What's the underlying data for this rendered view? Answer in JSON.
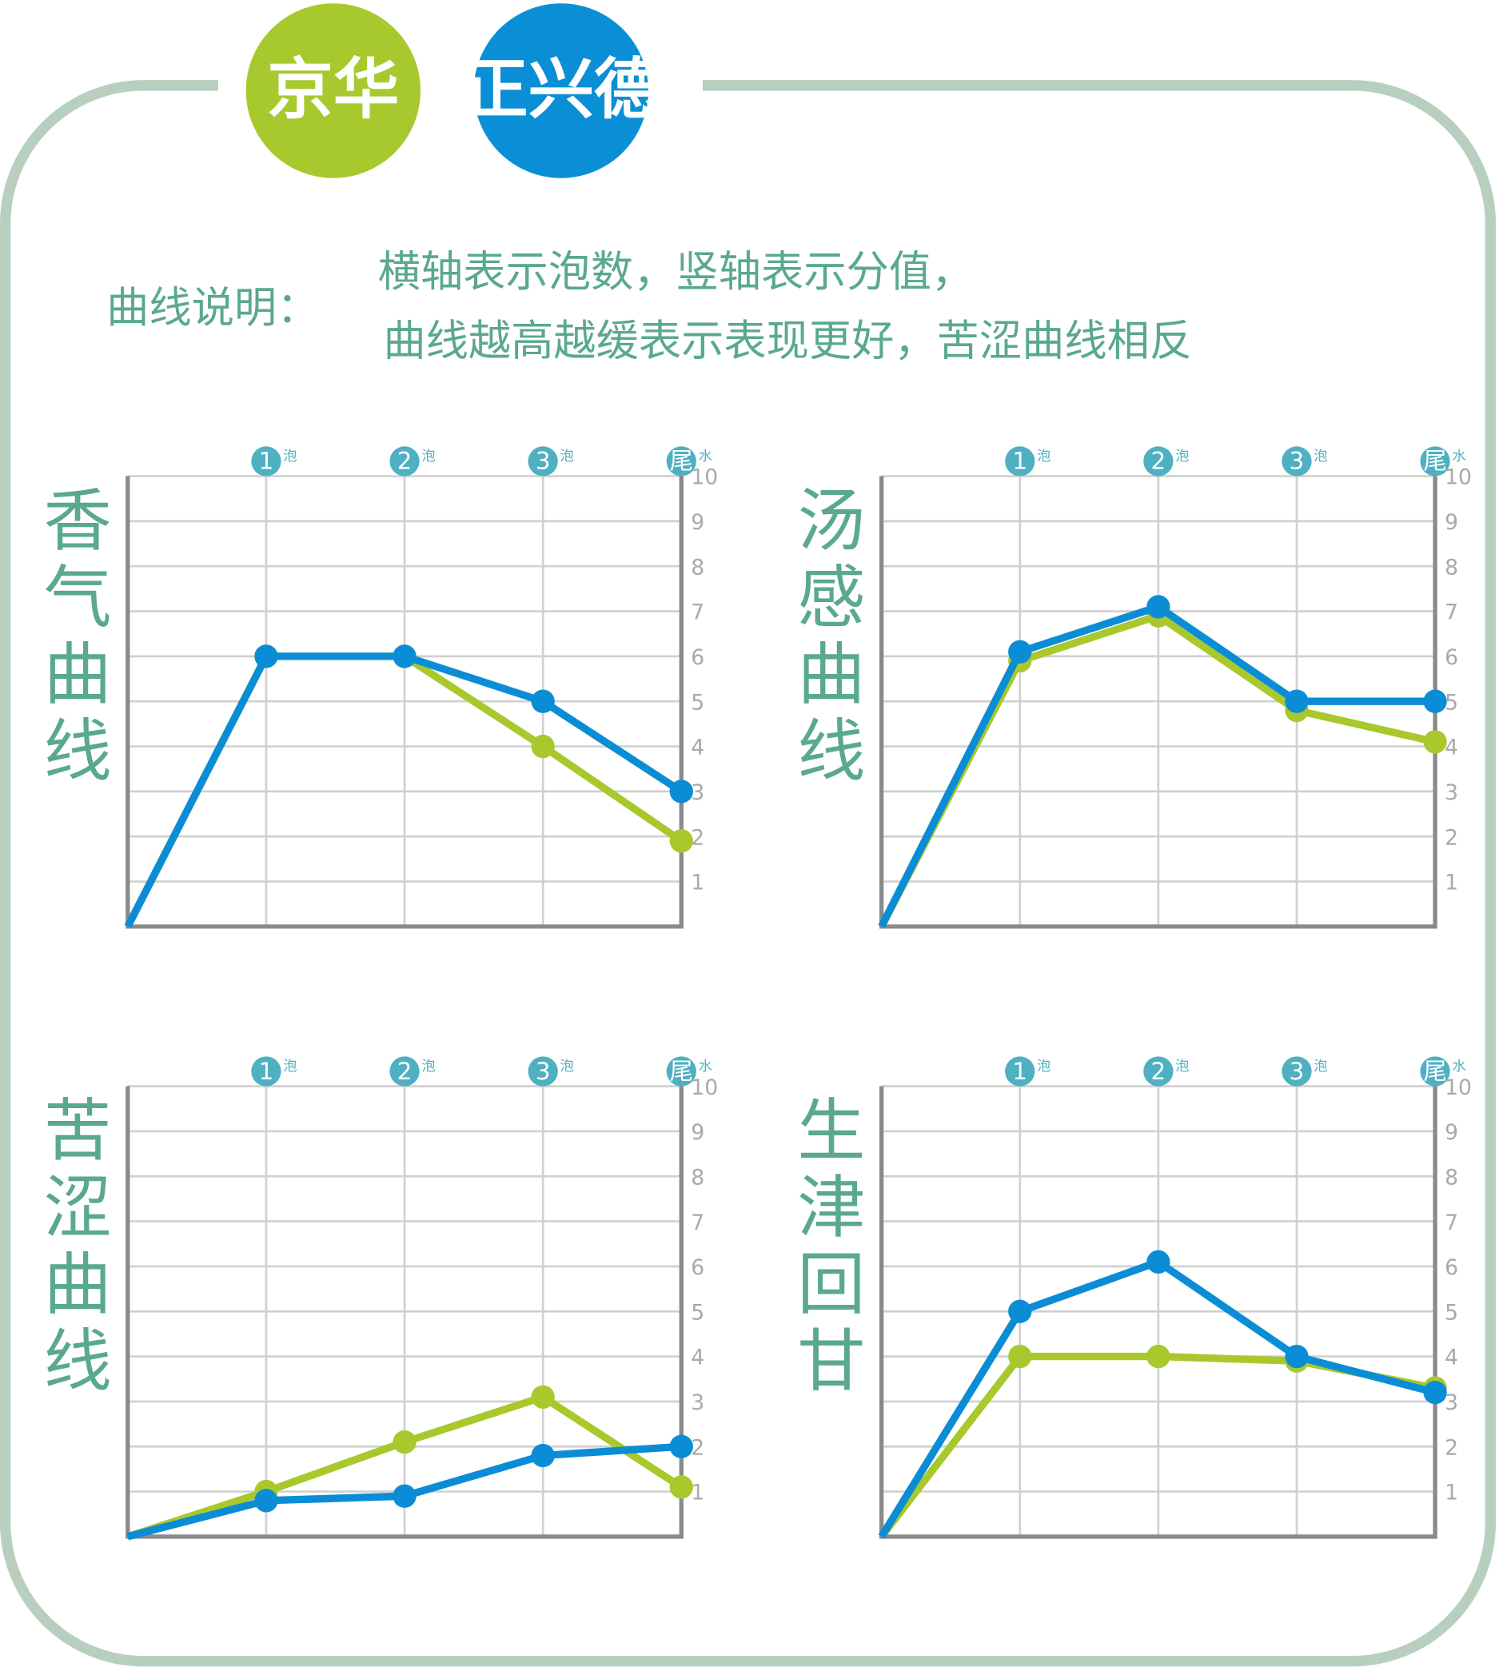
{
  "header": {
    "logos": [
      "京华",
      "正兴德"
    ],
    "note_label": "曲线说明：",
    "note_lines": [
      "横轴表示泡数，竖轴表示分值，",
      "曲线越高越缓表示表现更好，苦涩曲线相反"
    ]
  },
  "chart_data": [
    {
      "type": "line",
      "title": "香气曲线",
      "categories": [
        null,
        "1",
        "2",
        "3",
        "尾"
      ],
      "category_suffixes": [
        null,
        "泡",
        "泡",
        "泡",
        "水"
      ],
      "ylim": [
        0,
        10
      ],
      "yticks": [
        1,
        2,
        3,
        4,
        5,
        6,
        7,
        8,
        9,
        10
      ],
      "grid": true,
      "series": [
        {
          "color": "#a8c82c",
          "values": [
            0,
            6,
            6,
            4,
            1.9
          ]
        },
        {
          "color": "#0b8dd6",
          "values": [
            0,
            6,
            6,
            5,
            3
          ]
        }
      ]
    },
    {
      "type": "line",
      "title": "汤感曲线",
      "categories": [
        null,
        "1",
        "2",
        "3",
        "尾"
      ],
      "category_suffixes": [
        null,
        "泡",
        "泡",
        "泡",
        "水"
      ],
      "ylim": [
        0,
        10
      ],
      "yticks": [
        1,
        2,
        3,
        4,
        5,
        6,
        7,
        8,
        9,
        10
      ],
      "grid": true,
      "series": [
        {
          "color": "#a8c82c",
          "values": [
            0,
            5.9,
            6.9,
            4.8,
            4.1
          ]
        },
        {
          "color": "#0b8dd6",
          "values": [
            0,
            6.1,
            7.1,
            5,
            5
          ]
        }
      ]
    },
    {
      "type": "line",
      "title": "苦涩曲线",
      "categories": [
        null,
        "1",
        "2",
        "3",
        "尾"
      ],
      "category_suffixes": [
        null,
        "泡",
        "泡",
        "泡",
        "水"
      ],
      "ylim": [
        0,
        10
      ],
      "yticks": [
        1,
        2,
        3,
        4,
        5,
        6,
        7,
        8,
        9,
        10
      ],
      "grid": true,
      "series": [
        {
          "color": "#a8c82c",
          "values": [
            0,
            1,
            2.1,
            3.1,
            1.1
          ]
        },
        {
          "color": "#0b8dd6",
          "values": [
            0,
            0.8,
            0.9,
            1.8,
            2
          ]
        }
      ]
    },
    {
      "type": "line",
      "title": "生津回甘",
      "categories": [
        null,
        "1",
        "2",
        "3",
        "尾"
      ],
      "category_suffixes": [
        null,
        "泡",
        "泡",
        "泡",
        "水"
      ],
      "ylim": [
        0,
        10
      ],
      "yticks": [
        1,
        2,
        3,
        4,
        5,
        6,
        7,
        8,
        9,
        10
      ],
      "grid": true,
      "series": [
        {
          "color": "#a8c82c",
          "values": [
            0,
            4,
            4,
            3.9,
            3.3
          ]
        },
        {
          "color": "#0b8dd6",
          "values": [
            0,
            5,
            6.1,
            4,
            3.2
          ]
        }
      ]
    }
  ]
}
